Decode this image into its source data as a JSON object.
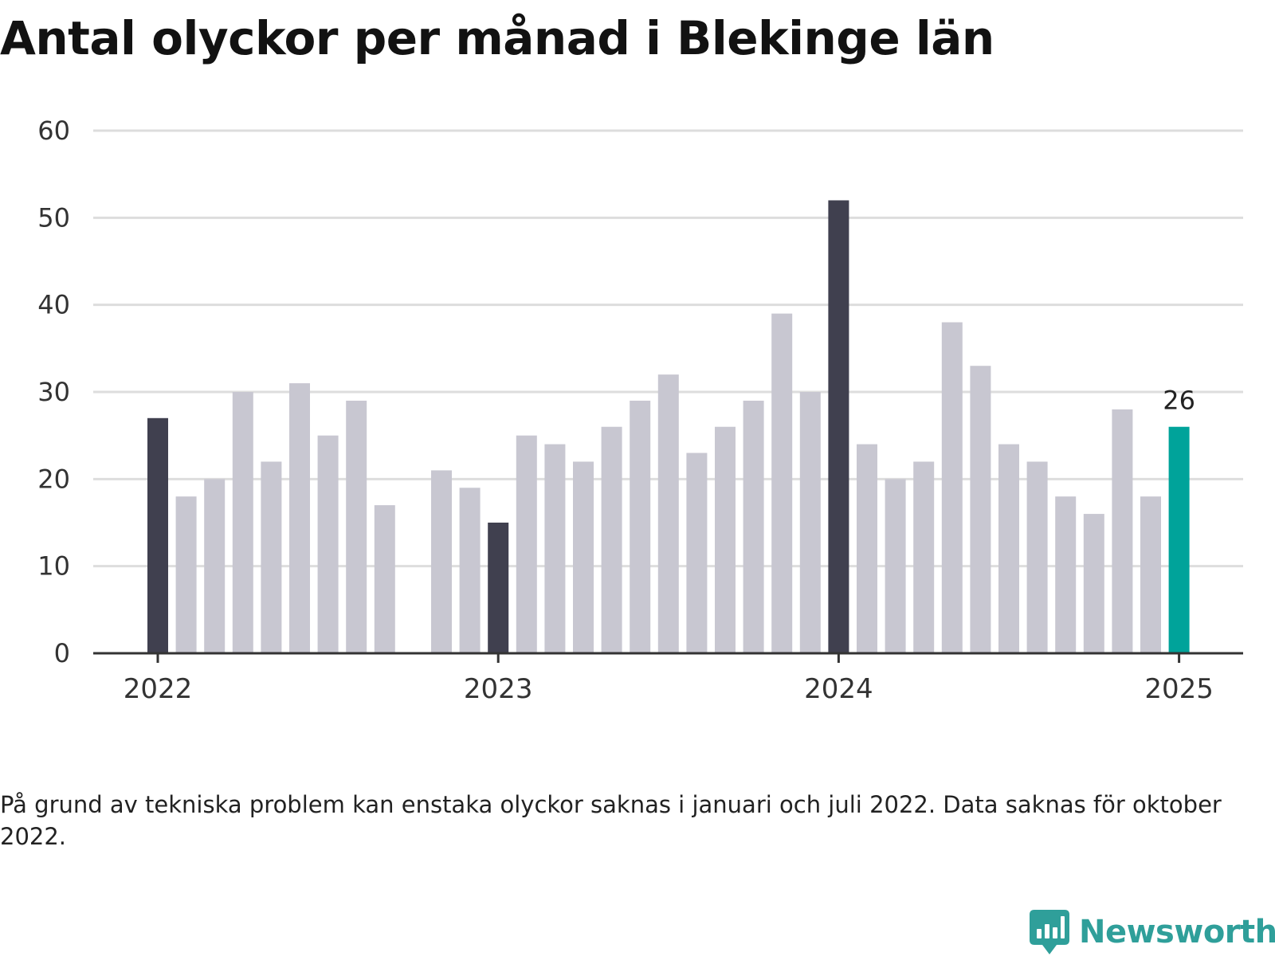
{
  "title": "Antal olyckor per månad i Blekinge län",
  "footnote": "På grund av tekniska problem kan enstaka olyckor saknas i januari och juli 2022. Data saknas för oktober 2022.",
  "brand": {
    "name": "Newsworthy",
    "icon": "newsworthy-logo-icon",
    "color": "#2f9f9a"
  },
  "chart_data": {
    "type": "bar",
    "title": "Antal olyckor per månad i Blekinge län",
    "xlabel": "",
    "ylabel": "",
    "ylim": [
      0,
      60
    ],
    "yticks": [
      0,
      10,
      20,
      30,
      40,
      50,
      60
    ],
    "xticks": [
      {
        "label": "2022",
        "at": "2022-01"
      },
      {
        "label": "2023",
        "at": "2023-01"
      },
      {
        "label": "2024",
        "at": "2024-01"
      },
      {
        "label": "2025",
        "at": "2025-01"
      }
    ],
    "grid": true,
    "legend": "none",
    "colors": {
      "default": "#c8c7d1",
      "january": "#40404f",
      "latest": "#00a39a",
      "grid": "#dddddd",
      "axis": "#333333"
    },
    "categories": [
      "2022-01",
      "2022-02",
      "2022-03",
      "2022-04",
      "2022-05",
      "2022-06",
      "2022-07",
      "2022-08",
      "2022-09",
      "2022-10",
      "2022-11",
      "2022-12",
      "2023-01",
      "2023-02",
      "2023-03",
      "2023-04",
      "2023-05",
      "2023-06",
      "2023-07",
      "2023-08",
      "2023-09",
      "2023-10",
      "2023-11",
      "2023-12",
      "2024-01",
      "2024-02",
      "2024-03",
      "2024-04",
      "2024-05",
      "2024-06",
      "2024-07",
      "2024-08",
      "2024-09",
      "2024-10",
      "2024-11",
      "2024-12",
      "2025-01"
    ],
    "values": [
      27,
      18,
      20,
      30,
      22,
      31,
      25,
      29,
      17,
      null,
      21,
      19,
      15,
      25,
      24,
      22,
      26,
      29,
      32,
      23,
      26,
      29,
      39,
      30,
      52,
      24,
      20,
      22,
      38,
      33,
      24,
      22,
      18,
      16,
      28,
      18,
      26
    ],
    "highlight_label": {
      "category": "2025-01",
      "text": "26"
    }
  }
}
